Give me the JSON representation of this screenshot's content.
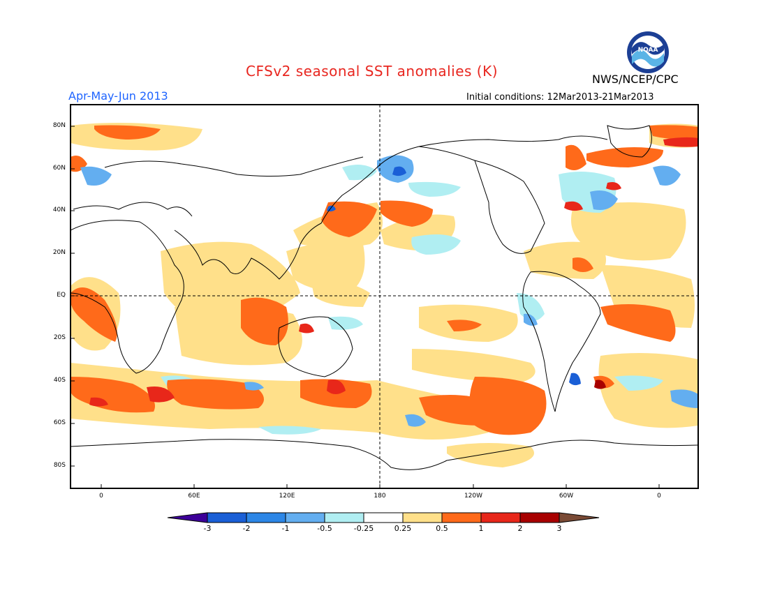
{
  "title": "CFSv2 seasonal SST anomalies (K)",
  "period": "Apr-May-Jun 2013",
  "agency": "NWS/NCEP/CPC",
  "initial_conditions": "Initial conditions: 12Mar2013-21Mar2013",
  "logo_text": "NOAA",
  "lat_labels": [
    "80N",
    "60N",
    "40N",
    "20N",
    "EQ",
    "20S",
    "40S",
    "60S",
    "80S"
  ],
  "lon_labels": [
    "0",
    "60E",
    "120E",
    "180",
    "120W",
    "60W",
    "0"
  ],
  "colorbar": {
    "labels": [
      "-3",
      "-2",
      "-1",
      "-0.5",
      "-0.25",
      "0.25",
      "0.5",
      "1",
      "2",
      "3"
    ],
    "colors": [
      "#3d0099",
      "#1a5fd6",
      "#2c86e6",
      "#63aef0",
      "#b0eef2",
      "#ffffff",
      "#ffe08a",
      "#ff6a1a",
      "#e8271a",
      "#a80000",
      "#7a4a35"
    ]
  },
  "anomaly_colors": {
    "weak_warm": "#ffe08a",
    "warm": "#ff6a1a",
    "strong_warm": "#e8271a",
    "very_warm": "#a80000",
    "weak_cool": "#b0eef2",
    "cool": "#63aef0",
    "strong_cool": "#2c86e6",
    "very_cool": "#1a5fd6"
  },
  "icons": {
    "logo": "noaa-logo"
  }
}
